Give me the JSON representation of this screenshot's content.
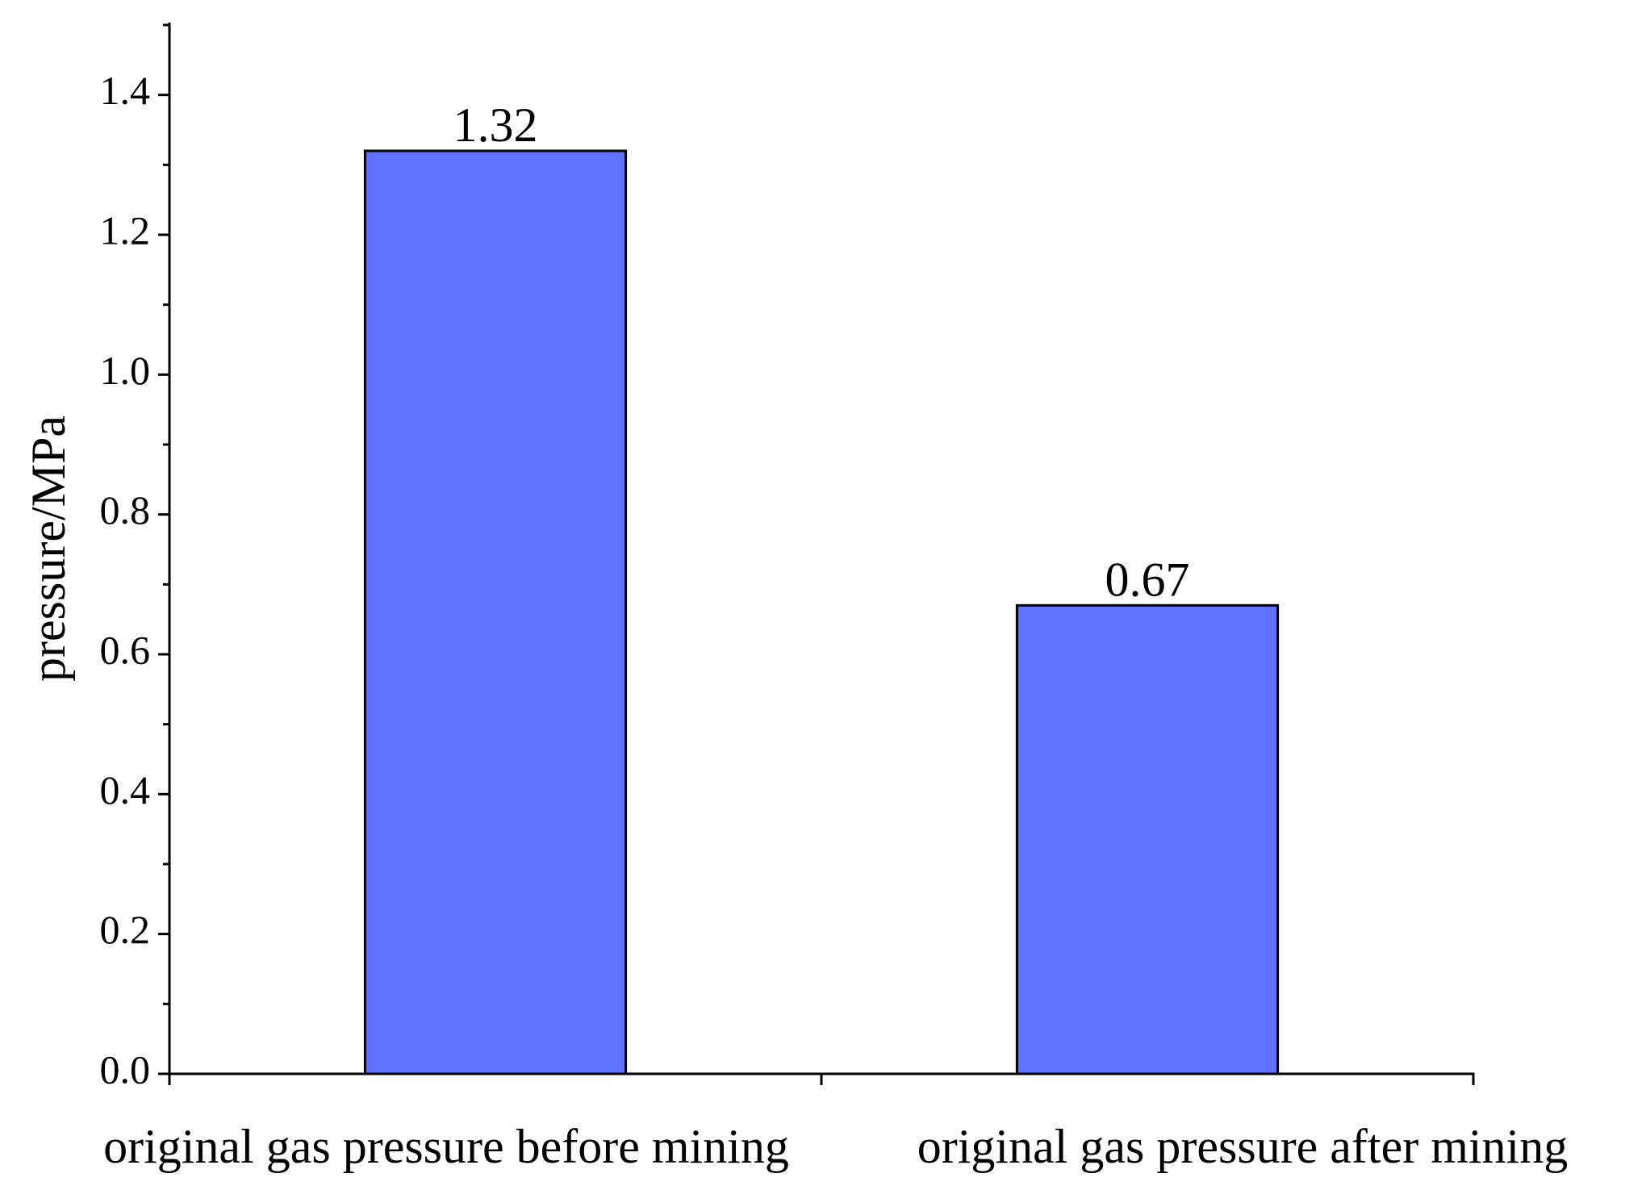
{
  "chart_data": {
    "type": "bar",
    "y_label": "pressure/MPa",
    "categories": [
      "original gas pressure before mining",
      "original gas pressure after mining"
    ],
    "values": [
      1.32,
      0.67
    ],
    "color": "#6070ff",
    "ylim": [
      0,
      1.5
    ],
    "yticks": [
      {
        "value": 0,
        "label": "0.0"
      },
      0.2,
      0.4,
      0.6,
      0.8,
      {
        "value": 1,
        "label": "1.0"
      },
      1.2,
      1.4
    ],
    "yminor_ticks": [
      0.1,
      0.3,
      0.5,
      0.7,
      0.9,
      1.1,
      1.3,
      1.5
    ],
    "grid": false
  }
}
